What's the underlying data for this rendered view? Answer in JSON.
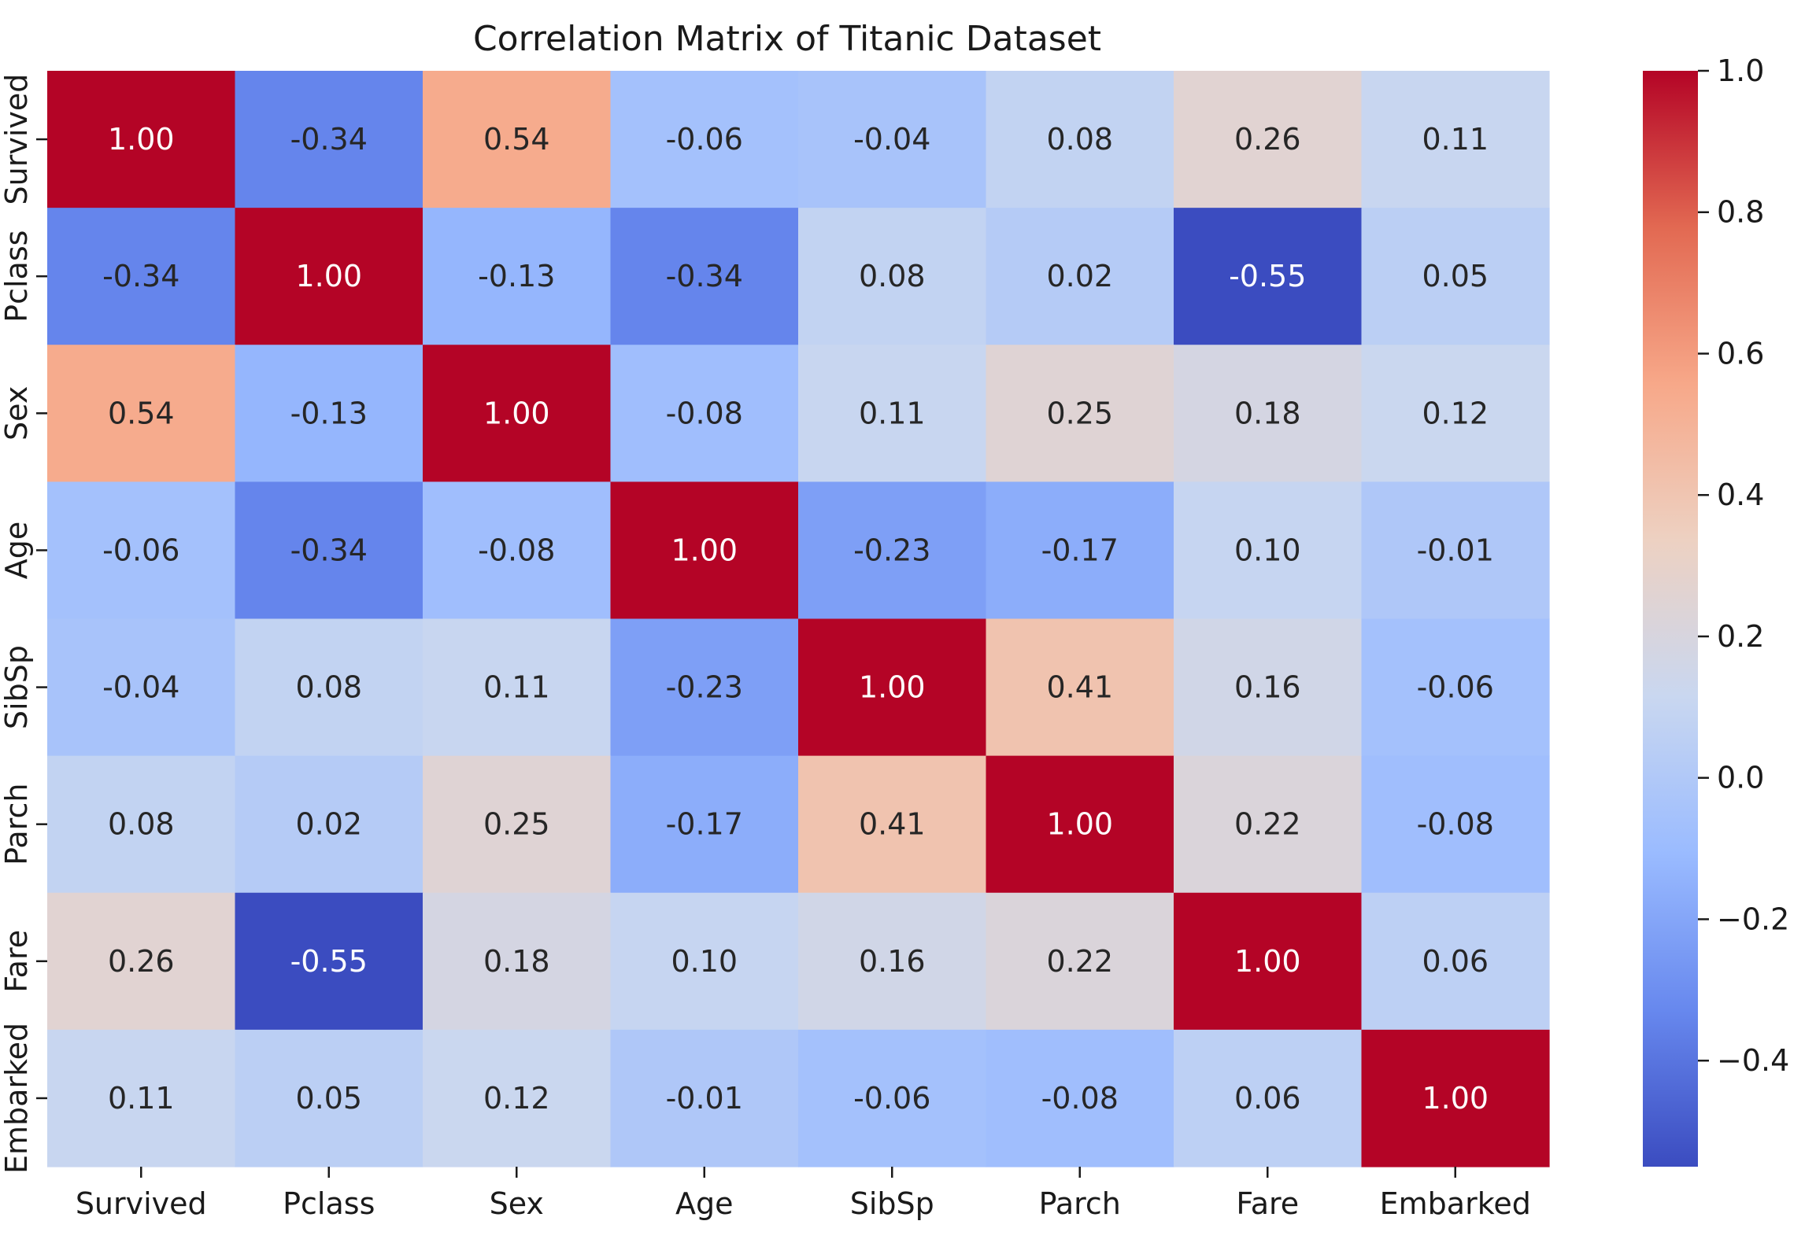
{
  "chart_data": {
    "type": "heatmap",
    "title": "Correlation Matrix of Titanic Dataset",
    "xlabel": "",
    "ylabel": "",
    "x_labels": [
      "Survived",
      "Pclass",
      "Sex",
      "Age",
      "SibSp",
      "Parch",
      "Fare",
      "Embarked"
    ],
    "y_labels": [
      "Survived",
      "Pclass",
      "Sex",
      "Age",
      "SibSp",
      "Parch",
      "Fare",
      "Embarked"
    ],
    "values": [
      [
        1.0,
        -0.34,
        0.54,
        -0.06,
        -0.04,
        0.08,
        0.26,
        0.11
      ],
      [
        -0.34,
        1.0,
        -0.13,
        -0.34,
        0.08,
        0.02,
        -0.55,
        0.05
      ],
      [
        0.54,
        -0.13,
        1.0,
        -0.08,
        0.11,
        0.25,
        0.18,
        0.12
      ],
      [
        -0.06,
        -0.34,
        -0.08,
        1.0,
        -0.23,
        -0.17,
        0.1,
        -0.01
      ],
      [
        -0.04,
        0.08,
        0.11,
        -0.23,
        1.0,
        0.41,
        0.16,
        -0.06
      ],
      [
        0.08,
        0.02,
        0.25,
        -0.17,
        0.41,
        1.0,
        0.22,
        -0.08
      ],
      [
        0.26,
        -0.55,
        0.18,
        0.1,
        0.16,
        0.22,
        1.0,
        0.06
      ],
      [
        0.11,
        0.05,
        0.12,
        -0.01,
        -0.06,
        -0.08,
        0.06,
        1.0
      ]
    ],
    "cell_labels": [
      [
        "1.00",
        "-0.34",
        "0.54",
        "-0.06",
        "-0.04",
        "0.08",
        "0.26",
        "0.11"
      ],
      [
        "-0.34",
        "1.00",
        "-0.13",
        "-0.34",
        "0.08",
        "0.02",
        "-0.55",
        "0.05"
      ],
      [
        "0.54",
        "-0.13",
        "1.00",
        "-0.08",
        "0.11",
        "0.25",
        "0.18",
        "0.12"
      ],
      [
        "-0.06",
        "-0.34",
        "-0.08",
        "1.00",
        "-0.23",
        "-0.17",
        "0.10",
        "-0.01"
      ],
      [
        "-0.04",
        "0.08",
        "0.11",
        "-0.23",
        "1.00",
        "0.41",
        "0.16",
        "-0.06"
      ],
      [
        "0.08",
        "0.02",
        "0.25",
        "-0.17",
        "0.41",
        "1.00",
        "0.22",
        "-0.08"
      ],
      [
        "0.26",
        "-0.55",
        "0.18",
        "0.10",
        "0.16",
        "0.22",
        "1.00",
        "0.06"
      ],
      [
        "0.11",
        "0.05",
        "0.12",
        "-0.01",
        "-0.06",
        "-0.08",
        "0.06",
        "1.00"
      ]
    ],
    "colormap": "coolwarm",
    "colormap_stops": [
      "#3b4cc0",
      "#6788ee",
      "#9abbff",
      "#c9d7f0",
      "#edd1c2",
      "#f7a889",
      "#e26952",
      "#b40426"
    ],
    "vmin": -0.55,
    "vmax": 1.0,
    "colorbar": {
      "ticks": [
        -0.4,
        -0.2,
        0.0,
        0.2,
        0.4,
        0.6,
        0.8,
        1.0
      ],
      "tick_labels": [
        "−0.4",
        "−0.2",
        "0.0",
        "0.2",
        "0.4",
        "0.6",
        "0.8",
        "1.0"
      ],
      "placement": "right"
    },
    "grid": false,
    "legend": "none"
  }
}
